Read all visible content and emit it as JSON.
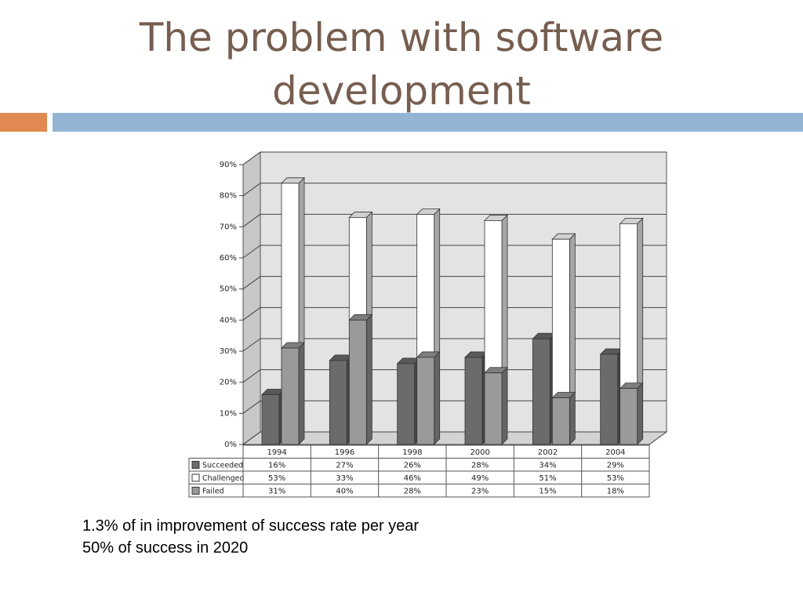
{
  "slide": {
    "title_line1": "The problem with software",
    "title_line2": "development",
    "caption_line1": "1.3% of in improvement  of success rate per year",
    "caption_line2": "50% of success  in  2020"
  },
  "colors": {
    "title": "#765e50",
    "accent_orange": "#e08a52",
    "accent_blue": "#93b5d3"
  },
  "chart_data": {
    "type": "bar",
    "categories": [
      "1994",
      "1996",
      "1998",
      "2000",
      "2002",
      "2004"
    ],
    "series": [
      {
        "name": "Succeeded",
        "values": [
          16,
          27,
          26,
          28,
          34,
          29
        ],
        "labels": [
          "16%",
          "27%",
          "26%",
          "28%",
          "34%",
          "29%"
        ],
        "color": "#6b6b6b",
        "stacked": false
      },
      {
        "name": "Challenged",
        "values": [
          53,
          33,
          46,
          49,
          51,
          53
        ],
        "labels": [
          "53%",
          "33%",
          "46%",
          "49%",
          "51%",
          "53%"
        ],
        "color": "#ffffff",
        "stacked": true
      },
      {
        "name": "Failed",
        "values": [
          31,
          40,
          28,
          23,
          15,
          18
        ],
        "labels": [
          "31%",
          "40%",
          "28%",
          "23%",
          "15%",
          "18%"
        ],
        "color": "#9a9a9a",
        "stacked": true
      }
    ],
    "ylim": [
      0,
      90
    ],
    "yticks": [
      "0%",
      "10%",
      "20%",
      "30%",
      "40%",
      "50%",
      "60%",
      "70%",
      "80%",
      "90%"
    ],
    "grid": true,
    "data_table": true
  }
}
